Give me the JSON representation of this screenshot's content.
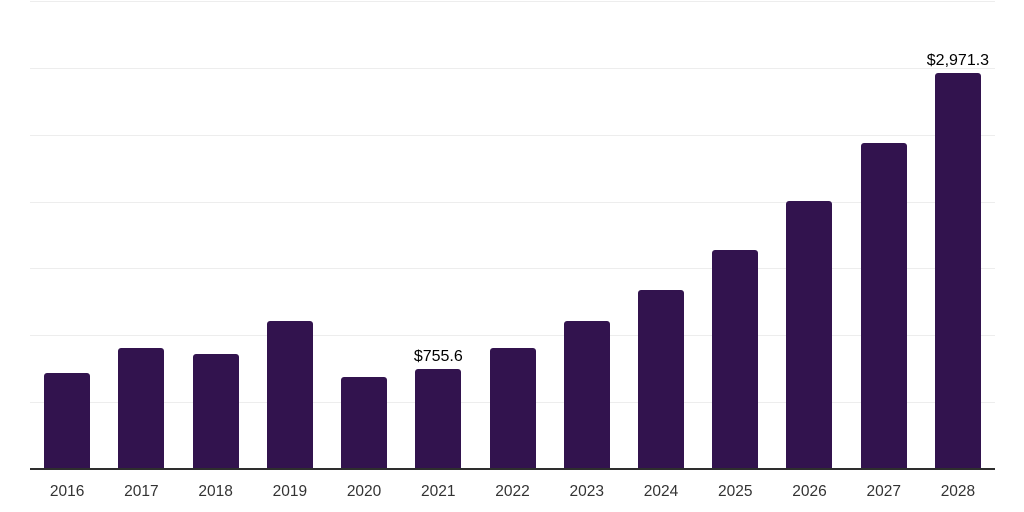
{
  "chart": {
    "background_color": "#ffffff",
    "bar_color": "#32134E",
    "axis_line_color": "#2e2e2e",
    "gridline_color": "#ededed",
    "tick_label_color": "#333333",
    "data_label_color": "#000000"
  },
  "chart_data": {
    "type": "bar",
    "title": "",
    "xlabel": "",
    "ylabel": "",
    "categories": [
      "2016",
      "2017",
      "2018",
      "2019",
      "2020",
      "2021",
      "2022",
      "2023",
      "2024",
      "2025",
      "2026",
      "2027",
      "2028"
    ],
    "values": [
      727,
      909,
      869,
      1118,
      699,
      755.6,
      912,
      1111,
      1343,
      1648,
      2010,
      2442,
      2971.3
    ],
    "data_labels": [
      "",
      "",
      "",
      "",
      "",
      "$755.6",
      "",
      "",
      "",
      "",
      "",
      "",
      "$2,971.3"
    ],
    "ylim": [
      0,
      3500
    ],
    "gridline_interval": 500,
    "grid": true,
    "legend_position": "none",
    "y_axis_ticks_visible": false
  }
}
